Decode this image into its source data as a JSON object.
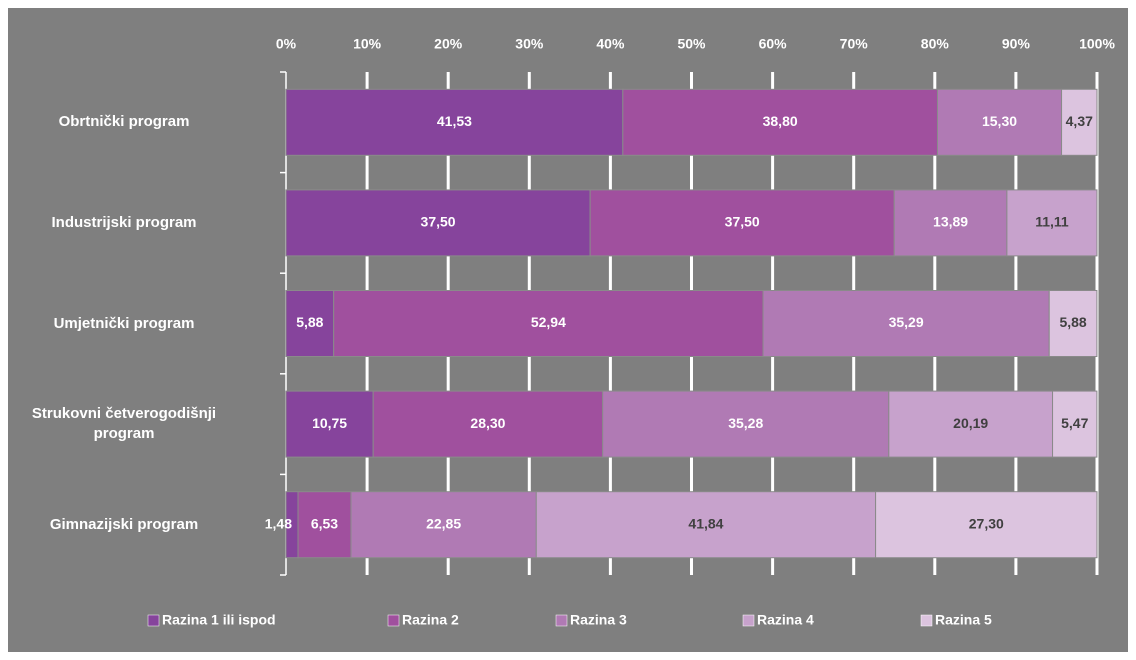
{
  "chart_data": {
    "type": "stacked-bar-horizontal",
    "categories": [
      "Obrtnički program",
      "Industrijski program",
      "Umjetnički program",
      "Strukovni četverogodišnji program",
      "Gimnazijski program"
    ],
    "series": [
      {
        "name": "Razina 1 ili ispod",
        "color": "#86449c",
        "label_color": "#ffffff",
        "values": [
          41.53,
          37.5,
          5.88,
          10.75,
          1.48
        ],
        "value_labels": [
          "41,53",
          "37,50",
          "5,88",
          "10,75",
          "1,48"
        ]
      },
      {
        "name": "Razina 2",
        "color": "#a0509e",
        "label_color": "#ffffff",
        "values": [
          38.8,
          37.5,
          52.94,
          28.3,
          6.53
        ],
        "value_labels": [
          "38,80",
          "37,50",
          "52,94",
          "28,30",
          "6,53"
        ]
      },
      {
        "name": "Razina 3",
        "color": "#b07ab4",
        "label_color": "#ffffff",
        "values": [
          15.3,
          13.89,
          35.29,
          35.28,
          22.85
        ],
        "value_labels": [
          "15,30",
          "13,89",
          "35,29",
          "35,28",
          "22,85"
        ]
      },
      {
        "name": "Razina 4",
        "color": "#c7a2cc",
        "label_color": "#404040",
        "values": [
          0,
          11.11,
          0,
          20.19,
          41.84
        ],
        "value_labels": [
          null,
          "11,11",
          null,
          "20,19",
          "41,84"
        ]
      },
      {
        "name": "Razina 5",
        "color": "#dcc4df",
        "label_color": "#404040",
        "values": [
          4.37,
          0,
          5.88,
          5.47,
          27.3
        ],
        "value_labels": [
          "4,37",
          null,
          "5,88",
          "5,47",
          "27,30"
        ]
      }
    ],
    "xlim": [
      0,
      100
    ],
    "xticks": [
      {
        "value": 0,
        "label": "0%"
      },
      {
        "value": 10,
        "label": "10%"
      },
      {
        "value": 20,
        "label": "20%"
      },
      {
        "value": 30,
        "label": "30%"
      },
      {
        "value": 40,
        "label": "40%"
      },
      {
        "value": 50,
        "label": "50%"
      },
      {
        "value": 60,
        "label": "60%"
      },
      {
        "value": 70,
        "label": "70%"
      },
      {
        "value": 80,
        "label": "80%"
      },
      {
        "value": 90,
        "label": "90%"
      },
      {
        "value": 100,
        "label": "100%"
      }
    ],
    "grid": true
  }
}
